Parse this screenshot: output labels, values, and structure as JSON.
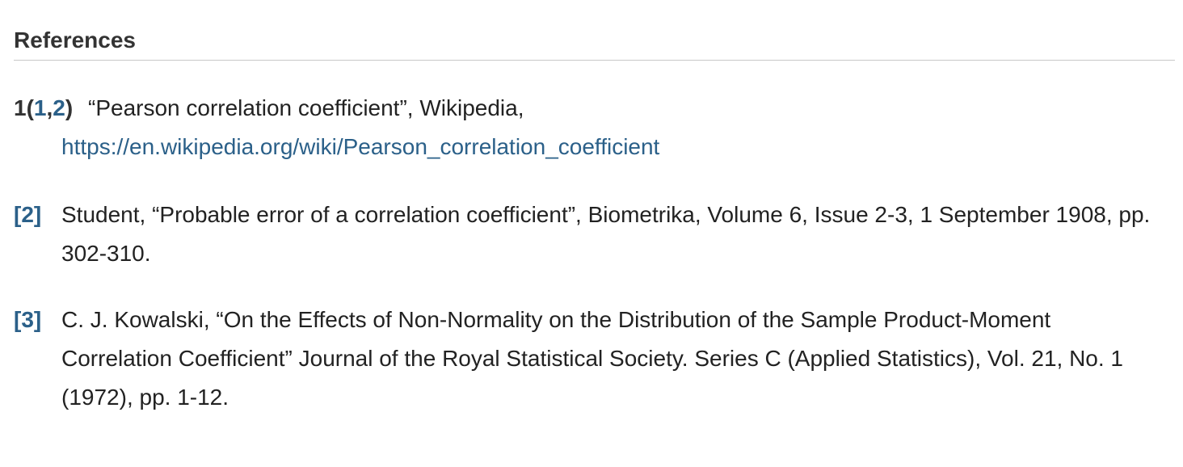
{
  "section": {
    "title": "References"
  },
  "references": [
    {
      "label_num": "1",
      "label_open": "(",
      "backlinks": [
        "1",
        "2"
      ],
      "backlink_sep": ",",
      "label_close": ")",
      "text": "“Pearson correlation coefficient”, Wikipedia,",
      "url": "https://en.wikipedia.org/wiki/Pearson_correlation_coefficient"
    },
    {
      "label": "[2]",
      "text": "Student, “Probable error of a correlation coefficient”, Biometrika, Volume 6, Issue 2-3, 1 September 1908, pp. 302-310."
    },
    {
      "label": "[3]",
      "text": "C. J. Kowalski, “On the Effects of Non-Normality on the Distribution of the Sample Product-Moment Correlation Coefficient” Journal of the Royal Statistical Society. Series C (Applied Statistics), Vol. 21, No. 1 (1972), pp. 1-12."
    }
  ],
  "colors": {
    "link": "#2b6089",
    "text": "#222222",
    "heading": "#333333",
    "rule": "#c8c8c8"
  }
}
